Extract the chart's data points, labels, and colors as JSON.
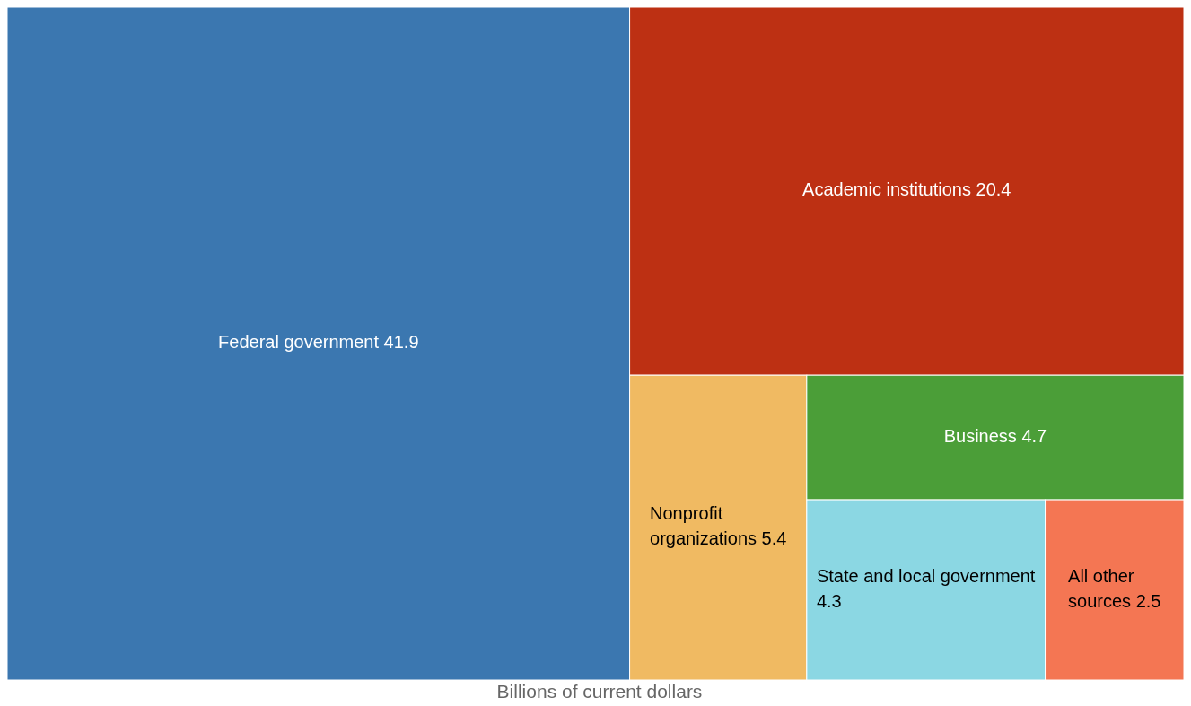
{
  "chart_data": {
    "type": "other",
    "xlabel": "Billions of current dollars",
    "categories": [
      "Federal government",
      "Academic institutions",
      "Nonprofit organizations",
      "Business",
      "State and local government",
      "All other sources"
    ],
    "values": [
      41.9,
      20.4,
      5.4,
      4.7,
      4.3,
      2.5
    ],
    "colors": [
      "#3b77b0",
      "#bd3013",
      "#f0ba62",
      "#4b9e38",
      "#8bd7e3",
      "#f47653"
    ],
    "data_labels": true
  }
}
